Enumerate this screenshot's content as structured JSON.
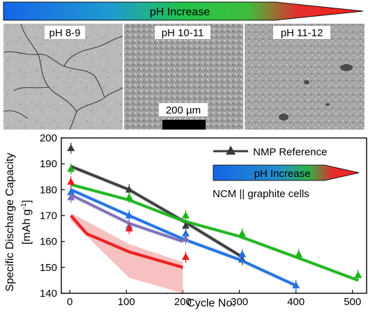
{
  "header": {
    "arrow_label": "pH Increase",
    "gradient_colors": [
      "#1565e8",
      "#22c34a",
      "#e52c2c"
    ]
  },
  "micrographs": [
    {
      "label": "pH 8-9"
    },
    {
      "label": "pH 10-11"
    },
    {
      "label": "pH 11-12"
    }
  ],
  "scale_bar": {
    "label": "200 µm"
  },
  "chart_data": {
    "type": "line",
    "xlabel": "Cycle No.",
    "ylabel_line1": "Specific Discharge Capacity",
    "ylabel_line2": "[mAh g",
    "ylabel_unit_sup": "-1",
    "ylabel_close": "]",
    "xlim": [
      -15,
      525
    ],
    "ylim": [
      140,
      200
    ],
    "xticks": [
      "0",
      "100",
      "200",
      "300",
      "400",
      "500"
    ],
    "yticks": [
      "140",
      "150",
      "160",
      "170",
      "180",
      "190",
      "200"
    ],
    "legend": {
      "entry": "NMP Reference",
      "gradient_label": "pH Increase",
      "note": "NCM || graphite cells",
      "placement": "top-right"
    },
    "series": [
      {
        "name": "NMP Reference",
        "color": "#3a3a3a",
        "line": [
          [
            2,
            189
          ],
          [
            105,
            180
          ],
          [
            200,
            168
          ],
          [
            305,
            154
          ]
        ],
        "markers": [
          [
            2,
            196
          ],
          [
            105,
            180
          ],
          [
            205,
            166
          ],
          [
            305,
            153
          ]
        ]
      },
      {
        "color": "#1f6fe0",
        "line": [
          [
            2,
            180
          ],
          [
            105,
            170
          ],
          [
            200,
            161
          ],
          [
            300,
            153
          ],
          [
            400,
            143
          ]
        ],
        "markers": [
          [
            2,
            179
          ],
          [
            105,
            170
          ],
          [
            205,
            163
          ],
          [
            305,
            155
          ],
          [
            400,
            143
          ]
        ]
      },
      {
        "color": "#7a6fb8",
        "line": [
          [
            2,
            178
          ],
          [
            105,
            167
          ],
          [
            200,
            160
          ]
        ],
        "markers": [
          [
            2,
            177
          ],
          [
            105,
            166
          ],
          [
            205,
            161
          ]
        ]
      },
      {
        "color": "#1db31d",
        "line": [
          [
            2,
            182
          ],
          [
            105,
            176
          ],
          [
            200,
            168
          ],
          [
            300,
            162
          ],
          [
            400,
            154
          ],
          [
            510,
            145
          ]
        ],
        "markers": [
          [
            2,
            188
          ],
          [
            105,
            177
          ],
          [
            205,
            170
          ],
          [
            305,
            163
          ],
          [
            405,
            155
          ],
          [
            510,
            147
          ]
        ]
      },
      {
        "color": "#ea1c1c",
        "line": [
          [
            2,
            170
          ],
          [
            30,
            163
          ],
          [
            105,
            156
          ],
          [
            200,
            150
          ]
        ],
        "markers": [
          [
            2,
            183
          ],
          [
            105,
            165
          ],
          [
            205,
            154
          ]
        ]
      }
    ],
    "red_band": {
      "color": "#f7b6b6",
      "upper": [
        [
          2,
          171
        ],
        [
          105,
          159
        ],
        [
          200,
          152
        ]
      ],
      "lower": [
        [
          2,
          168
        ],
        [
          105,
          146
        ],
        [
          200,
          140
        ]
      ]
    }
  }
}
